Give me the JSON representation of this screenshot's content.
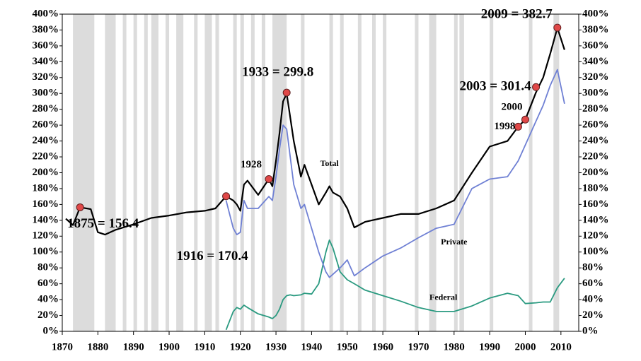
{
  "chart_data": {
    "type": "line",
    "x": [
      1871,
      1873,
      1875,
      1878,
      1880,
      1882,
      1885,
      1890,
      1895,
      1900,
      1905,
      1910,
      1913,
      1916,
      1918,
      1919,
      1920,
      1921,
      1922,
      1925,
      1928,
      1929,
      1930,
      1931,
      1932,
      1933,
      1934,
      1935,
      1937,
      1938,
      1940,
      1942,
      1944,
      1945,
      1946,
      1948,
      1950,
      1952,
      1955,
      1960,
      1965,
      1970,
      1975,
      1980,
      1985,
      1990,
      1995,
      1998,
      2000,
      2003,
      2005,
      2007,
      2009,
      2011
    ],
    "series": [
      {
        "name": "Total",
        "color": "#000000",
        "values": [
          142,
          134,
          156.4,
          154,
          125,
          122,
          128,
          135,
          143,
          146,
          150,
          152,
          155,
          170.4,
          165,
          160,
          152,
          185,
          190,
          172,
          192,
          183,
          215,
          250,
          290,
          299.8,
          270,
          240,
          195,
          210,
          185,
          160,
          175,
          183,
          175,
          170,
          155,
          131,
          138,
          143,
          148,
          148,
          155,
          165,
          200,
          233,
          240,
          258,
          267,
          301.4,
          320,
          350,
          382.7,
          355
        ]
      },
      {
        "name": "Private",
        "color": "#6f80d4",
        "values": [
          null,
          null,
          null,
          null,
          null,
          null,
          null,
          null,
          null,
          null,
          null,
          null,
          null,
          165,
          130,
          122,
          125,
          165,
          155,
          155,
          170,
          165,
          195,
          230,
          260,
          255,
          220,
          185,
          155,
          160,
          130,
          100,
          75,
          68,
          72,
          80,
          90,
          70,
          80,
          95,
          105,
          118,
          130,
          135,
          180,
          192,
          195,
          215,
          235,
          265,
          285,
          310,
          330,
          287
        ]
      },
      {
        "name": "Federal",
        "color": "#2a9a80",
        "values": [
          null,
          null,
          null,
          null,
          null,
          null,
          null,
          null,
          null,
          null,
          null,
          null,
          null,
          2,
          25,
          30,
          28,
          33,
          30,
          22,
          18,
          16,
          20,
          28,
          40,
          45,
          46,
          45,
          46,
          48,
          47,
          60,
          100,
          115,
          105,
          75,
          65,
          60,
          52,
          45,
          38,
          30,
          25,
          25,
          32,
          42,
          48,
          45,
          35,
          36,
          37,
          37,
          55,
          67
        ]
      }
    ],
    "annotations": [
      {
        "label": "1875 = 156.4",
        "x": 1875,
        "y": 156.4
      },
      {
        "label": "1916 = 170.4",
        "x": 1916,
        "y": 170.4
      },
      {
        "label": "1928",
        "x": 1928,
        "y": 192
      },
      {
        "label": "1933 = 299.8",
        "x": 1933,
        "y": 301
      },
      {
        "label": "1998",
        "x": 1998,
        "y": 258
      },
      {
        "label": "2000",
        "x": 2000,
        "y": 267
      },
      {
        "label": "2003 = 301.4",
        "x": 2003,
        "y": 308
      },
      {
        "label": "2009 = 382.7",
        "x": 2009,
        "y": 383
      }
    ],
    "recessions": [
      [
        1873,
        1879
      ],
      [
        1882,
        1885
      ],
      [
        1887,
        1888
      ],
      [
        1890,
        1891
      ],
      [
        1893,
        1894
      ],
      [
        1895,
        1897
      ],
      [
        1899,
        1900
      ],
      [
        1902,
        1904
      ],
      [
        1907,
        1908
      ],
      [
        1910,
        1912
      ],
      [
        1913,
        1914
      ],
      [
        1918,
        1919
      ],
      [
        1920,
        1921
      ],
      [
        1923,
        1924
      ],
      [
        1926,
        1927
      ],
      [
        1929,
        1933
      ],
      [
        1937,
        1938
      ],
      [
        1945,
        1946
      ],
      [
        1948,
        1949
      ],
      [
        1953,
        1954
      ],
      [
        1957,
        1958
      ],
      [
        1960,
        1961
      ],
      [
        1969,
        1970
      ],
      [
        1973,
        1975
      ],
      [
        1980,
        1981
      ],
      [
        1981.5,
        1982.8
      ],
      [
        1990,
        1991
      ],
      [
        2001,
        2002
      ],
      [
        2007.9,
        2009.5
      ]
    ],
    "xlim": [
      1870,
      2015
    ],
    "xticks": [
      1870,
      1880,
      1890,
      1900,
      1910,
      1920,
      1930,
      1940,
      1950,
      1960,
      1970,
      1980,
      1990,
      2000,
      2010
    ],
    "ylim": [
      0,
      400
    ],
    "yticks": [
      {
        "value": 0,
        "label": "0%"
      },
      {
        "value": 20,
        "label": "20%"
      },
      {
        "value": 40,
        "label": "40%"
      },
      {
        "value": 60,
        "label": "60%"
      },
      {
        "value": 80,
        "label": "80%"
      },
      {
        "value": 100,
        "label": "100%"
      },
      {
        "value": 120,
        "label": "120%"
      },
      {
        "value": 140,
        "label": "140%"
      },
      {
        "value": 160,
        "label": "160%"
      },
      {
        "value": 180,
        "label": "180%"
      },
      {
        "value": 200,
        "label": "200%"
      },
      {
        "value": 220,
        "label": "220%"
      },
      {
        "value": 240,
        "label": "240%"
      },
      {
        "value": 260,
        "label": "260%"
      },
      {
        "value": 280,
        "label": "280%"
      },
      {
        "value": 300,
        "label": "300%"
      },
      {
        "value": 320,
        "label": "320%"
      },
      {
        "value": 340,
        "label": "340%"
      },
      {
        "value": 360,
        "label": "360%"
      },
      {
        "value": 380,
        "label": "380%"
      },
      {
        "value": 400,
        "label": "400%"
      }
    ],
    "y2lim": [
      0,
      400
    ],
    "y2ticks": [
      {
        "value": 0,
        "label": "0%"
      },
      {
        "value": 20,
        "label": "20%"
      },
      {
        "value": 40,
        "label": "40%"
      },
      {
        "value": 60,
        "label": "60%"
      },
      {
        "value": 80,
        "label": "80%"
      },
      {
        "value": 100,
        "label": "100%"
      },
      {
        "value": 120,
        "label": "120%"
      },
      {
        "value": 140,
        "label": "140%"
      },
      {
        "value": 160,
        "label": "160%"
      },
      {
        "value": 180,
        "label": "180%"
      },
      {
        "value": 200,
        "label": "200%"
      },
      {
        "value": 220,
        "label": "220%"
      },
      {
        "value": 240,
        "label": "240%"
      },
      {
        "value": 260,
        "label": "260%"
      },
      {
        "value": 280,
        "label": "280%"
      },
      {
        "value": 300,
        "label": "300%"
      },
      {
        "value": 320,
        "label": "320%"
      },
      {
        "value": 340,
        "label": "340%"
      },
      {
        "value": 360,
        "label": "360%"
      },
      {
        "value": 380,
        "label": "380%"
      },
      {
        "value": 400,
        "label": "400%"
      }
    ],
    "marker_color": "#e04848",
    "shade_color": "#dcdcdc"
  }
}
